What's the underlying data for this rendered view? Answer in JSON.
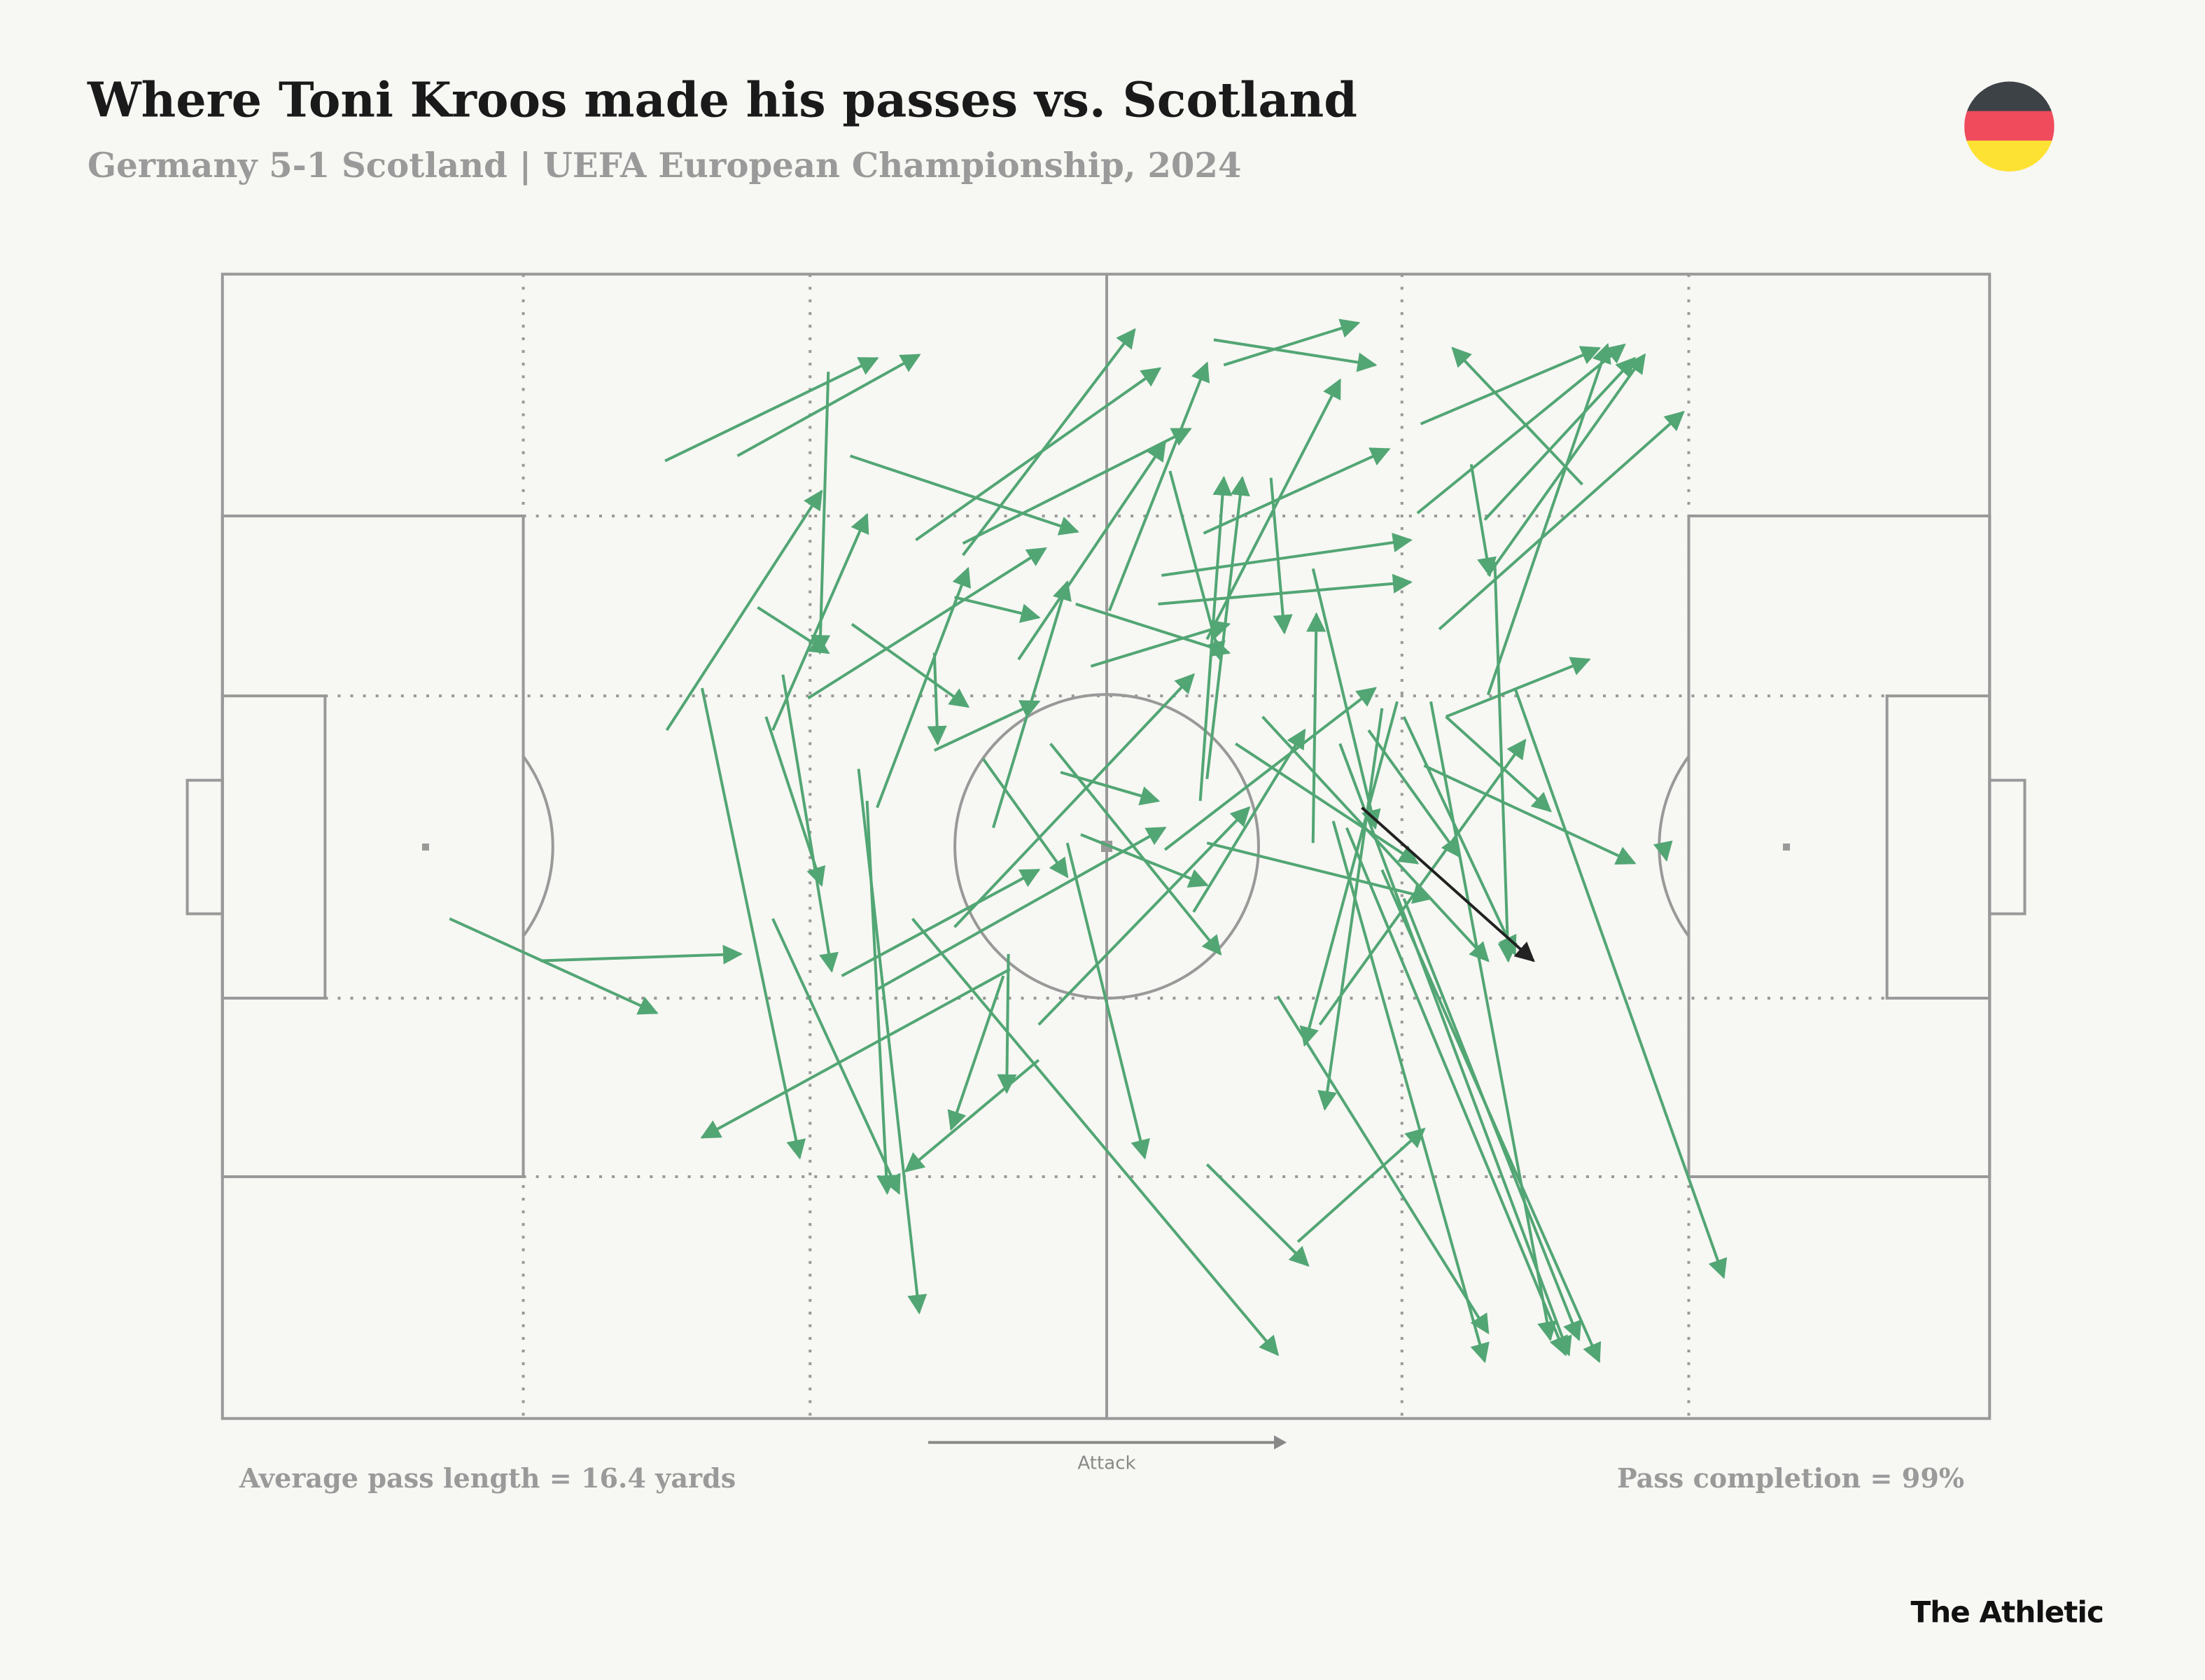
{
  "chart_data": {
    "type": "pass-map",
    "title": "Where Toni Kroos made his passes vs. Scotland",
    "subtitle": "Germany 5-1 Scotland | UEFA European Championship, 2024",
    "direction_label": "Attack",
    "annotations": [
      "Average pass length = 16.4 yards",
      "Pass completion = 99%"
    ],
    "brand": "The Athletic",
    "xlim": [
      0,
      105
    ],
    "ylim": [
      0,
      68
    ],
    "series": [
      {
        "color": "#52a674",
        "passes": [
          {
            "x": [
              26.3,
              38.9
            ],
            "y": [
              11.1,
              5.0
            ]
          },
          {
            "x": [
              30.6,
              41.4
            ],
            "y": [
              10.8,
              4.8
            ]
          },
          {
            "x": [
              36.0,
              35.5
            ],
            "y": [
              5.8,
              22.5
            ]
          },
          {
            "x": [
              37.3,
              50.8
            ],
            "y": [
              10.8,
              15.3
            ]
          },
          {
            "x": [
              41.2,
              55.7
            ],
            "y": [
              15.8,
              5.6
            ]
          },
          {
            "x": [
              44.0,
              54.2
            ],
            "y": [
              16.7,
              3.3
            ]
          },
          {
            "x": [
              44.0,
              57.5
            ],
            "y": [
              16.0,
              9.2
            ]
          },
          {
            "x": [
              58.9,
              68.5
            ],
            "y": [
              3.9,
              5.4
            ]
          },
          {
            "x": [
              59.5,
              67.5
            ],
            "y": [
              5.4,
              2.9
            ]
          },
          {
            "x": [
              71.2,
              81.8
            ],
            "y": [
              8.9,
              4.4
            ]
          },
          {
            "x": [
              71.0,
              83.3
            ],
            "y": [
              14.2,
              4.2
            ]
          },
          {
            "x": [
              80.8,
              73.1
            ],
            "y": [
              12.5,
              4.4
            ]
          },
          {
            "x": [
              74.2,
              75.3
            ],
            "y": [
              11.3,
              17.9
            ]
          },
          {
            "x": [
              75.2,
              84.5
            ],
            "y": [
              17.9,
              4.8
            ]
          },
          {
            "x": [
              72.3,
              86.8
            ],
            "y": [
              21.1,
              8.2
            ]
          },
          {
            "x": [
              75.0,
              83.9
            ],
            "y": [
              14.6,
              5.0
            ]
          },
          {
            "x": [
              75.2,
              82.3
            ],
            "y": [
              25.0,
              4.2
            ]
          },
          {
            "x": [
              31.8,
              36.0
            ],
            "y": [
              19.8,
              22.5
            ]
          },
          {
            "x": [
              26.4,
              35.6
            ],
            "y": [
              27.1,
              12.9
            ]
          },
          {
            "x": [
              32.7,
              38.3
            ],
            "y": [
              27.1,
              14.3
            ]
          },
          {
            "x": [
              37.4,
              44.3
            ],
            "y": [
              20.8,
              25.7
            ]
          },
          {
            "x": [
              34.8,
              48.9
            ],
            "y": [
              25.2,
              16.3
            ]
          },
          {
            "x": [
              43.5,
              48.5
            ],
            "y": [
              19.2,
              20.4
            ]
          },
          {
            "x": [
              50.7,
              59.8
            ],
            "y": [
              19.6,
              22.5
            ]
          },
          {
            "x": [
              51.6,
              59.8
            ],
            "y": [
              23.3,
              20.8
            ]
          },
          {
            "x": [
              55.6,
              70.6
            ],
            "y": [
              19.6,
              18.3
            ]
          },
          {
            "x": [
              55.8,
              70.6
            ],
            "y": [
              17.9,
              15.8
            ]
          },
          {
            "x": [
              58.3,
              69.3
            ],
            "y": [
              15.4,
              10.4
            ]
          },
          {
            "x": [
              62.3,
              63.1
            ],
            "y": [
              12.1,
              21.3
            ]
          },
          {
            "x": [
              56.3,
              59.3
            ],
            "y": [
              11.7,
              22.9
            ]
          },
          {
            "x": [
              47.3,
              56.0
            ],
            "y": [
              22.9,
              10.0
            ]
          },
          {
            "x": [
              52.7,
              58.5
            ],
            "y": [
              20.0,
              5.3
            ]
          },
          {
            "x": [
              58.5,
              66.4
            ],
            "y": [
              21.7,
              6.3
            ]
          },
          {
            "x": [
              64.8,
              65.0
            ],
            "y": [
              33.8,
              20.2
            ]
          },
          {
            "x": [
              64.8,
              68.5
            ],
            "y": [
              17.5,
              32.9
            ]
          },
          {
            "x": [
              69.8,
              64.3
            ],
            "y": [
              25.4,
              45.8
            ]
          },
          {
            "x": [
              58.1,
              59.5
            ],
            "y": [
              31.3,
              12.1
            ]
          },
          {
            "x": [
              58.5,
              60.6
            ],
            "y": [
              30.0,
              12.1
            ]
          },
          {
            "x": [
              45.8,
              50.2
            ],
            "y": [
              32.9,
              18.3
            ]
          },
          {
            "x": [
              38.9,
              44.3
            ],
            "y": [
              31.7,
              17.5
            ]
          },
          {
            "x": [
              42.3,
              42.5
            ],
            "y": [
              22.5,
              27.9
            ]
          },
          {
            "x": [
              42.3,
              48.5
            ],
            "y": [
              28.3,
              25.4
            ]
          },
          {
            "x": [
              33.3,
              36.2
            ],
            "y": [
              23.8,
              41.4
            ]
          },
          {
            "x": [
              32.3,
              35.6
            ],
            "y": [
              26.3,
              36.3
            ]
          },
          {
            "x": [
              28.5,
              34.3
            ],
            "y": [
              24.6,
              52.5
            ]
          },
          {
            "x": [
              32.7,
              40.2
            ],
            "y": [
              38.3,
              54.6
            ]
          },
          {
            "x": [
              13.5,
              25.8
            ],
            "y": [
              38.3,
              43.9
            ]
          },
          {
            "x": [
              18.9,
              30.8
            ],
            "y": [
              40.8,
              40.4
            ]
          },
          {
            "x": [
              38.3,
              39.5
            ],
            "y": [
              31.3,
              54.6
            ]
          },
          {
            "x": [
              37.8,
              41.4
            ],
            "y": [
              29.4,
              61.7
            ]
          },
          {
            "x": [
              50.2,
              54.8
            ],
            "y": [
              33.8,
              52.5
            ]
          },
          {
            "x": [
              46.8,
              28.5
            ],
            "y": [
              41.3,
              51.3
            ]
          },
          {
            "x": [
              48.5,
              40.6
            ],
            "y": [
              46.7,
              53.3
            ]
          },
          {
            "x": [
              46.4,
              43.3
            ],
            "y": [
              41.7,
              50.8
            ]
          },
          {
            "x": [
              36.8,
              48.5
            ],
            "y": [
              41.7,
              35.4
            ]
          },
          {
            "x": [
              38.9,
              56.0
            ],
            "y": [
              42.5,
              32.9
            ]
          },
          {
            "x": [
              43.5,
              57.7
            ],
            "y": [
              38.8,
              23.8
            ]
          },
          {
            "x": [
              49.8,
              55.6
            ],
            "y": [
              29.6,
              31.3
            ]
          },
          {
            "x": [
              51.0,
              58.5
            ],
            "y": [
              33.3,
              36.3
            ]
          },
          {
            "x": [
              45.2,
              50.2
            ],
            "y": [
              28.8,
              35.8
            ]
          },
          {
            "x": [
              49.2,
              59.3
            ],
            "y": [
              27.9,
              40.4
            ]
          },
          {
            "x": [
              58.5,
              71.8
            ],
            "y": [
              33.8,
              37.1
            ]
          },
          {
            "x": [
              56.0,
              68.5
            ],
            "y": [
              34.2,
              24.6
            ]
          },
          {
            "x": [
              57.7,
              64.3
            ],
            "y": [
              37.9,
              27.1
            ]
          },
          {
            "x": [
              48.5,
              61.0
            ],
            "y": [
              44.6,
              31.7
            ]
          },
          {
            "x": [
              46.7,
              46.6
            ],
            "y": [
              40.4,
              48.6
            ]
          },
          {
            "x": [
              58.5,
              64.5
            ],
            "y": [
              52.9,
              58.9
            ]
          },
          {
            "x": [
              63.9,
              71.4
            ],
            "y": [
              57.5,
              50.8
            ]
          },
          {
            "x": [
              41.0,
              62.7
            ],
            "y": [
              38.3,
              64.2
            ]
          },
          {
            "x": [
              62.7,
              75.2
            ],
            "y": [
              42.9,
              62.9
            ]
          },
          {
            "x": [
              68.1,
              73.5
            ],
            "y": [
              27.1,
              34.6
            ]
          },
          {
            "x": [
              60.2,
              71.0
            ],
            "y": [
              27.9,
              35.0
            ]
          },
          {
            "x": [
              61.8,
              75.2
            ],
            "y": [
              26.3,
              40.8
            ]
          },
          {
            "x": [
              65.2,
              77.4
            ],
            "y": [
              44.6,
              27.7
            ]
          },
          {
            "x": [
              71.8,
              78.9
            ],
            "y": [
              25.4,
              63.3
            ]
          },
          {
            "x": [
              70.2,
              76.8
            ],
            "y": [
              26.3,
              40.4
            ]
          },
          {
            "x": [
              72.7,
              81.2
            ],
            "y": [
              26.3,
              22.9
            ]
          },
          {
            "x": [
              71.4,
              83.9
            ],
            "y": [
              29.2,
              35.0
            ]
          },
          {
            "x": [
              72.7,
              78.9
            ],
            "y": [
              26.3,
              31.9
            ]
          },
          {
            "x": [
              76.8,
              89.2
            ],
            "y": [
              24.6,
              59.6
            ]
          },
          {
            "x": [
              66.8,
              79.8
            ],
            "y": [
              32.9,
              64.2
            ]
          },
          {
            "x": [
              66.0,
              75.0
            ],
            "y": [
              32.5,
              64.6
            ]
          },
          {
            "x": [
              68.9,
              81.8
            ],
            "y": [
              35.4,
              64.6
            ]
          },
          {
            "x": [
              70.2,
              80.6
            ],
            "y": [
              37.1,
              63.3
            ]
          },
          {
            "x": [
              66.4,
              80.0
            ],
            "y": [
              27.9,
              64.2
            ]
          },
          {
            "x": [
              75.6,
              76.4
            ],
            "y": [
              17.1,
              40.8
            ]
          },
          {
            "x": [
              85.6,
              85.8
            ],
            "y": [
              33.8,
              34.8
            ]
          },
          {
            "x": [
              68.9,
              65.5
            ],
            "y": [
              25.8,
              49.6
            ]
          }
        ]
      },
      {
        "color": "#222222",
        "passes": [
          {
            "x": [
              67.7,
              77.9
            ],
            "y": [
              31.7,
              40.8
            ]
          }
        ]
      }
    ]
  }
}
